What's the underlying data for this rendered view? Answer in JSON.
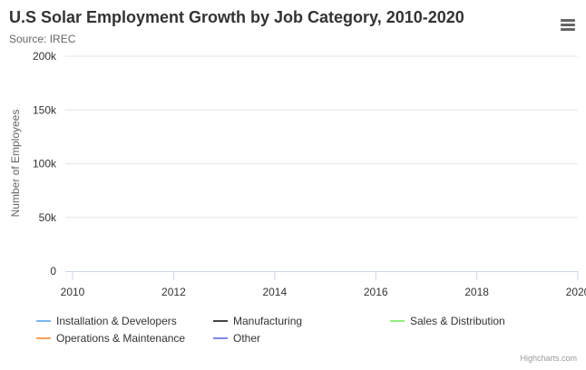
{
  "chart_data": {
    "type": "line",
    "title": "U.S Solar Employment Growth by Job Category, 2010-2020",
    "subtitle": "Source: IREC",
    "ylabel": "Number of Employees",
    "xlabel": "",
    "xlim": [
      2010,
      2020
    ],
    "ylim": [
      0,
      200000
    ],
    "x_ticks": [
      2010,
      2012,
      2014,
      2016,
      2018,
      2020
    ],
    "x_tick_labels": [
      "2010",
      "2012",
      "2014",
      "2016",
      "2018",
      "2020"
    ],
    "y_ticks": [
      0,
      50000,
      100000,
      150000,
      200000
    ],
    "y_tick_labels": [
      "0",
      "50k",
      "100k",
      "150k",
      "200k"
    ],
    "grid": true,
    "legend_position": "bottom",
    "series": [
      {
        "name": "Installation & Developers",
        "color": "#7cb5ec",
        "values": []
      },
      {
        "name": "Manufacturing",
        "color": "#434348",
        "values": []
      },
      {
        "name": "Sales & Distribution",
        "color": "#90ed7d",
        "values": []
      },
      {
        "name": "Operations & Maintenance",
        "color": "#f7a35c",
        "values": []
      },
      {
        "name": "Other",
        "color": "#8085e9",
        "values": []
      }
    ]
  },
  "menu": {
    "icon": "hamburger-menu-icon"
  },
  "credits": "Highcharts.com"
}
